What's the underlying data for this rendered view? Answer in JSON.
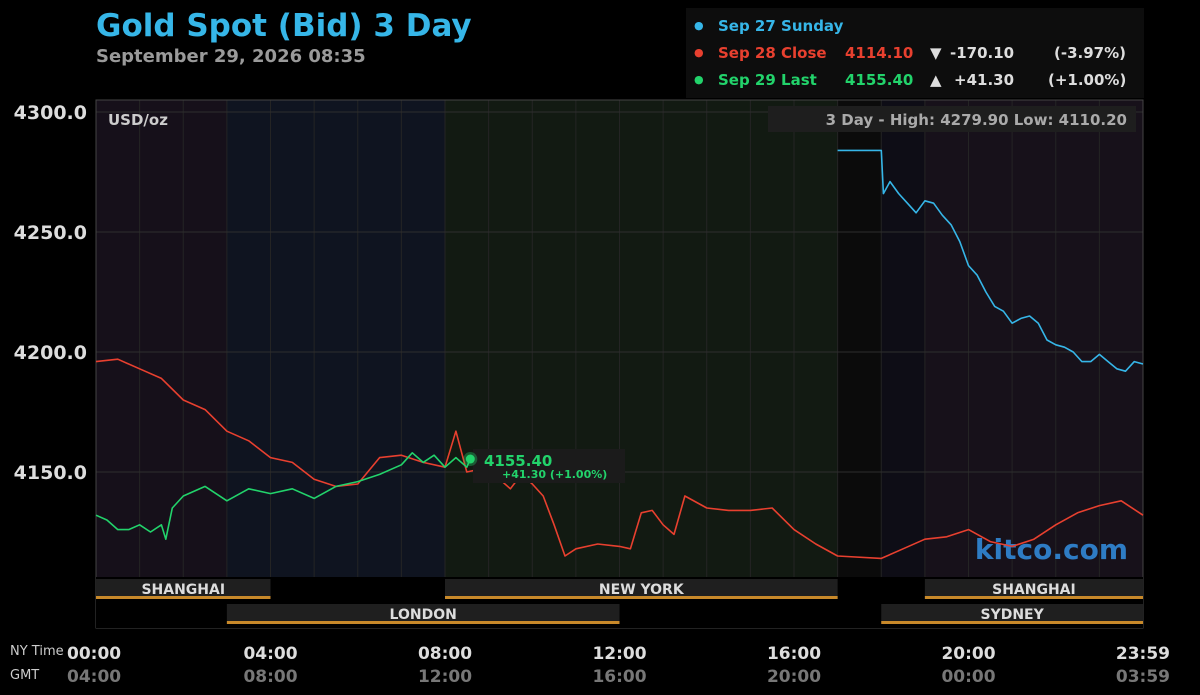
{
  "title": "Gold Spot (Bid) 3 Day",
  "timestamp": "September 29, 2026 08:35",
  "legend": [
    {
      "label": "Sep 27 Sunday",
      "price": "",
      "arrow": "",
      "change": "",
      "pct": "",
      "color": "#36b6e8"
    },
    {
      "label": "Sep 28 Close",
      "price": "4114.10",
      "arrow": "▼",
      "change": "-170.10",
      "pct": "(-3.97%)",
      "color": "#e8402f"
    },
    {
      "label": "Sep 29 Last",
      "price": "4155.40",
      "arrow": "▲",
      "change": "+41.30",
      "pct": "(+1.00%)",
      "color": "#22d36b"
    }
  ],
  "unit_label": "USD/oz",
  "range_box": "3 Day - High: 4279.90  Low: 4110.20",
  "last_marker": {
    "price": "4155.40",
    "change": "+41.30 (+1.00%)"
  },
  "watermark": "kitco.com",
  "axis_labels": {
    "ny": "NY Time",
    "gmt": "GMT"
  },
  "chart_data": {
    "type": "line",
    "ylim": [
      4100,
      4300
    ],
    "y_ticks": [
      "4300.0",
      "4250.0",
      "4200.0",
      "4150.0"
    ],
    "x_ticks": [
      {
        "h": 0,
        "ny": "00:00",
        "gmt": "04:00"
      },
      {
        "h": 4,
        "ny": "04:00",
        "gmt": "08:00"
      },
      {
        "h": 8,
        "ny": "08:00",
        "gmt": "12:00"
      },
      {
        "h": 12,
        "ny": "12:00",
        "gmt": "16:00"
      },
      {
        "h": 16,
        "ny": "16:00",
        "gmt": "20:00"
      },
      {
        "h": 20,
        "ny": "20:00",
        "gmt": "00:00"
      },
      {
        "h": 24,
        "ny": "23:59",
        "gmt": "03:59"
      }
    ],
    "series": [
      {
        "name": "Sep 27 Sunday",
        "color": "#36b6e8",
        "x": [
          17.0,
          18.0,
          18.05,
          18.2,
          18.4,
          18.6,
          18.8,
          19.0,
          19.2,
          19.4,
          19.6,
          19.8,
          20.0,
          20.2,
          20.4,
          20.6,
          20.8,
          21.0,
          21.2,
          21.4,
          21.6,
          21.8,
          22.0,
          22.2,
          22.4,
          22.6,
          22.8,
          23.0,
          23.2,
          23.4,
          23.6,
          23.8,
          24.0
        ],
        "y": [
          4284,
          4284,
          4266,
          4271,
          4266,
          4262,
          4258,
          4263,
          4262,
          4257,
          4253,
          4246,
          4236,
          4232,
          4225,
          4219,
          4217,
          4212,
          4214,
          4215,
          4212,
          4205,
          4203,
          4202,
          4200,
          4196,
          4196,
          4199,
          4196,
          4193,
          4192,
          4196,
          4195
        ]
      },
      {
        "name": "Sep 28 Close",
        "color": "#e8402f",
        "x": [
          0.0,
          0.5,
          1.0,
          1.5,
          2.0,
          2.5,
          3.0,
          3.5,
          4.0,
          4.5,
          5.0,
          5.5,
          6.0,
          6.5,
          7.0,
          7.5,
          8.0,
          8.25,
          8.5,
          8.75,
          9.0,
          9.25,
          9.5,
          9.75,
          10.0,
          10.25,
          10.5,
          10.75,
          11.0,
          11.5,
          12.0,
          12.25,
          12.5,
          12.75,
          13.0,
          13.25,
          13.5,
          14.0,
          14.5,
          15.0,
          15.5,
          16.0,
          16.5,
          17.0,
          18.0,
          18.5,
          19.0,
          19.5,
          20.0,
          20.5,
          21.0,
          21.5,
          22.0,
          22.5,
          23.0,
          23.5,
          24.0
        ],
        "y": [
          4196,
          4197,
          4193,
          4189,
          4180,
          4176,
          4167,
          4163,
          4156,
          4154,
          4147,
          4144,
          4145,
          4156,
          4157,
          4154,
          4152,
          4167,
          4150,
          4151,
          4150,
          4147,
          4143,
          4149,
          4145,
          4140,
          4128,
          4115,
          4118,
          4120,
          4119,
          4118,
          4133,
          4134,
          4128,
          4124,
          4140,
          4135,
          4134,
          4134,
          4135,
          4126,
          4120,
          4115,
          4114,
          4118,
          4122,
          4123,
          4126,
          4121,
          4119,
          4122,
          4128,
          4133,
          4136,
          4138,
          4132
        ]
      },
      {
        "name": "Sep 29 Last",
        "color": "#22d36b",
        "x": [
          0.0,
          0.25,
          0.5,
          0.75,
          1.0,
          1.25,
          1.5,
          1.6,
          1.75,
          2.0,
          2.5,
          3.0,
          3.5,
          4.0,
          4.5,
          5.0,
          5.5,
          6.0,
          6.5,
          7.0,
          7.25,
          7.5,
          7.75,
          8.0,
          8.25,
          8.5,
          8.58
        ],
        "y": [
          4132,
          4130,
          4126,
          4126,
          4128,
          4125,
          4128,
          4122,
          4135,
          4140,
          4144,
          4138,
          4143,
          4141,
          4143,
          4139,
          4144,
          4146,
          4149,
          4153,
          4158,
          4154,
          4157,
          4152,
          4156,
          4152,
          4155.4
        ]
      }
    ]
  },
  "sessions": [
    {
      "label": "SHANGHAI",
      "start": 0,
      "end": 4,
      "lane": 0
    },
    {
      "label": "NEW YORK",
      "start": 8,
      "end": 17,
      "lane": 0
    },
    {
      "label": "SHANGHAI",
      "start": 19,
      "end": 24,
      "lane": 0
    },
    {
      "label": "LONDON",
      "start": 3,
      "end": 12,
      "lane": 1
    },
    {
      "label": "SYDNEY",
      "start": 18,
      "end": 24,
      "lane": 1
    }
  ]
}
